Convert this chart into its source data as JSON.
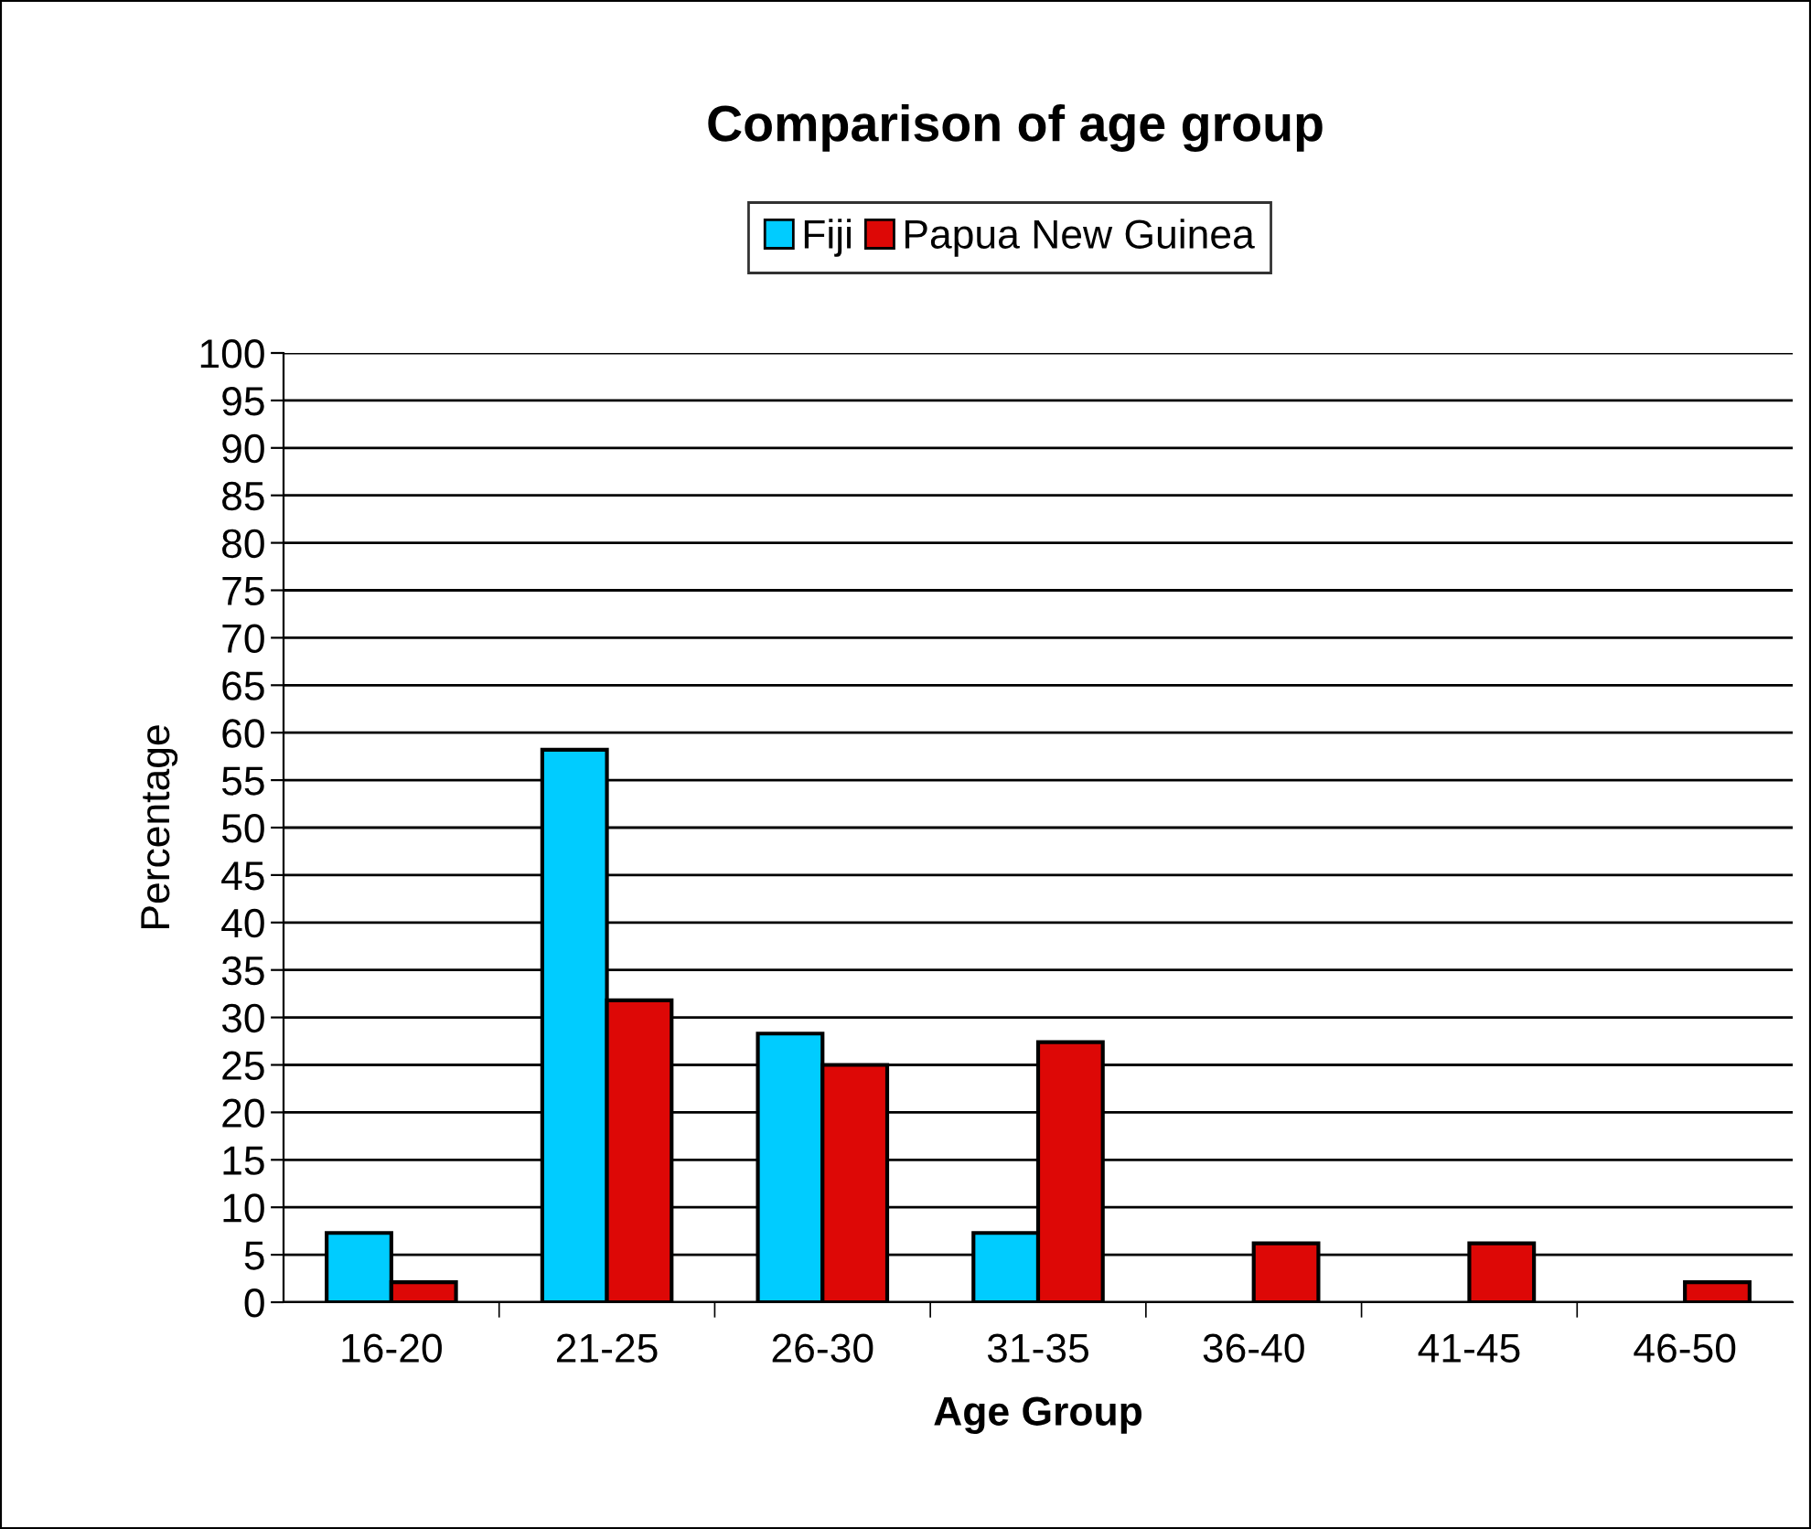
{
  "chart_data": {
    "type": "bar",
    "title": "Comparison of age group",
    "xlabel": "Age Group",
    "ylabel": "Percentage",
    "categories": [
      "16-20",
      "21-25",
      "26-30",
      "31-35",
      "36-40",
      "41-45",
      "46-50"
    ],
    "series": [
      {
        "name": "Fiji",
        "color": "#00ccff",
        "values": [
          7.3,
          58.2,
          28.3,
          7.3,
          0,
          0,
          0
        ]
      },
      {
        "name": "Papua New Guinea",
        "color": "#dd0806",
        "values": [
          2.1,
          31.8,
          25.0,
          27.4,
          6.2,
          6.2,
          2.1
        ]
      }
    ],
    "ylim": [
      0,
      100
    ],
    "yticks": [
      0,
      5,
      10,
      15,
      20,
      25,
      30,
      35,
      40,
      45,
      50,
      55,
      60,
      65,
      70,
      75,
      80,
      85,
      90,
      95,
      100
    ],
    "grid": "y",
    "legend": "top"
  }
}
